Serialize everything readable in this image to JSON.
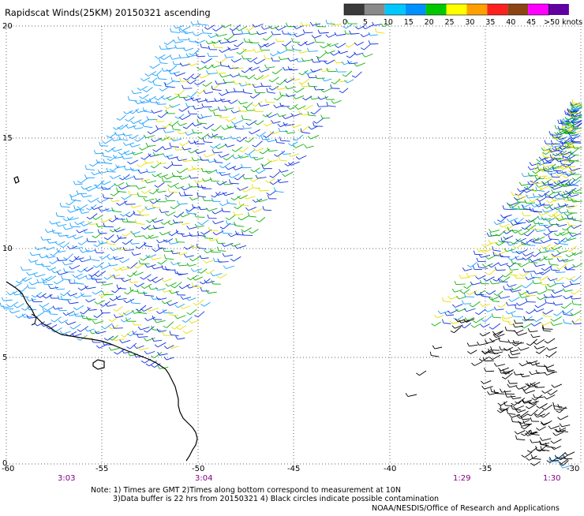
{
  "title": "Rapidscat Winds(25KM) 20150321 ascending",
  "legend": {
    "labels": [
      "0",
      "5",
      "10",
      "15",
      "20",
      "25",
      "30",
      "35",
      "40",
      "45",
      ">50 knots"
    ],
    "colors": [
      "#3a3a3a",
      "#8a8a8a",
      "#00c8ff",
      "#0090ff",
      "#00c800",
      "#ffff00",
      "#ffa000",
      "#ff2020",
      "#8b4513",
      "#ff00ff",
      "#6000a0"
    ]
  },
  "axes": {
    "x_ticks": [
      "-60",
      "-55",
      "-50",
      "-45",
      "-40",
      "-35",
      "-30"
    ],
    "y_ticks": [
      "0",
      "5",
      "10",
      "15",
      "20"
    ]
  },
  "times": [
    "3:03",
    "3:04",
    "1:29",
    "1:30"
  ],
  "notes": {
    "line1": "Note: 1) Times are GMT 2)Times along bottom correspond to measurement at 10N",
    "line2": "3)Data buffer is 22 hrs from 20150321 4) Black circles indicate possible contamination",
    "line3": "NOAA/NESDIS/Office of Research and Applications"
  },
  "colors": {
    "grid": "#555555",
    "time_label": "#800080",
    "coast": "#000000",
    "barb_blue": "#1030e0",
    "barb_cyan": "#1aa0ff",
    "barb_green": "#10b010",
    "barb_yellow": "#e8e000",
    "barb_black": "#000000"
  }
}
